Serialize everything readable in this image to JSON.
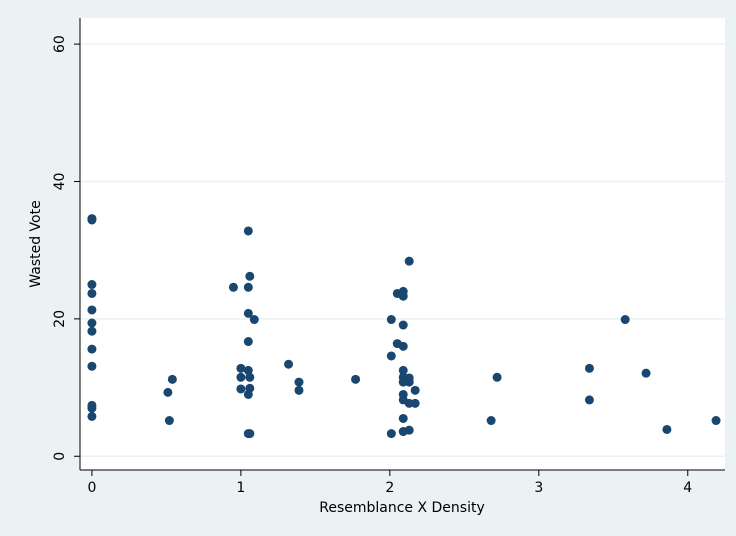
{
  "chart_data": {
    "type": "scatter",
    "x_label": "Resemblance X Density",
    "y_label": "Wasted Vote",
    "x": [
      0,
      0,
      0,
      0,
      0,
      0,
      0,
      0,
      0,
      0,
      0,
      0,
      0.51,
      0.54,
      0.52,
      0.95,
      1.05,
      1.06,
      1.05,
      1.05,
      1.09,
      1.05,
      1.0,
      1.05,
      1.0,
      1.06,
      1.0,
      1.06,
      1.05,
      1.05,
      1.06,
      1.32,
      1.39,
      1.39,
      1.77,
      2.01,
      2.01,
      2.01,
      2.05,
      2.09,
      2.09,
      2.09,
      2.05,
      2.09,
      2.13,
      2.09,
      2.09,
      2.13,
      2.09,
      2.13,
      2.17,
      2.09,
      2.09,
      2.13,
      2.17,
      2.09,
      2.13,
      2.09,
      2.68,
      2.72,
      3.34,
      3.34,
      3.58,
      3.72,
      3.86,
      4.19
    ],
    "values": [
      34.6,
      34.4,
      25.0,
      23.7,
      21.3,
      19.4,
      18.2,
      15.6,
      13.1,
      7.4,
      7.0,
      5.8,
      9.3,
      11.2,
      5.2,
      24.6,
      32.8,
      26.2,
      24.6,
      20.8,
      19.9,
      16.7,
      12.8,
      12.5,
      11.5,
      11.5,
      9.8,
      9.9,
      9.0,
      3.3,
      3.3,
      13.4,
      10.8,
      9.6,
      11.2,
      19.9,
      14.6,
      3.3,
      23.7,
      24.0,
      23.3,
      19.1,
      16.4,
      16.0,
      28.4,
      12.5,
      11.5,
      11.4,
      10.8,
      10.8,
      9.6,
      9.0,
      8.2,
      7.7,
      7.7,
      5.5,
      3.8,
      3.6,
      5.2,
      11.5,
      12.8,
      8.2,
      19.9,
      12.1,
      3.9,
      5.2
    ],
    "color": "#1a476f",
    "xlim": [
      -0.08,
      4.25
    ],
    "ylim": [
      -2,
      63.8
    ],
    "xticks": [
      0,
      1,
      2,
      3,
      4
    ],
    "yticks": [
      0,
      20,
      40,
      60
    ],
    "grid": true
  }
}
